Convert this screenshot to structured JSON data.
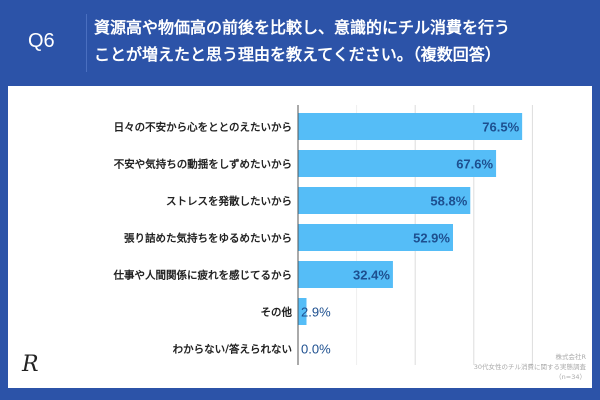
{
  "header": {
    "question_no": "Q6",
    "title_line1": "資源高や物価高の前後を比較し、意識的にチル消費を行う",
    "title_line2": "ことが増えたと思う理由を教えてください。（複数回答）"
  },
  "chart_data": {
    "type": "bar",
    "orientation": "horizontal",
    "categories": [
      "日々の不安から心をととのえたいから",
      "不安や気持ちの動揺をしずめたいから",
      "ストレスを発散したいから",
      "張り詰めた気持ちをゆるめたいから",
      "仕事や人間関係に疲れを感じてるから",
      "その他",
      "わからない/答えられない"
    ],
    "values": [
      76.5,
      67.6,
      58.8,
      52.9,
      32.4,
      2.9,
      0.0
    ],
    "value_labels": [
      "76.5%",
      "67.6%",
      "58.8%",
      "52.9%",
      "32.4%",
      "2.9%",
      "0.0%"
    ],
    "xlim": [
      0,
      100
    ],
    "grid": true,
    "bar_color": "#55bdf7",
    "label_color": "#1d4f8f"
  },
  "source": {
    "line1": "株式会社R",
    "line2": "30代女性のチル消費に関する実態調査",
    "line3": "（n=34）"
  },
  "logo": "R"
}
